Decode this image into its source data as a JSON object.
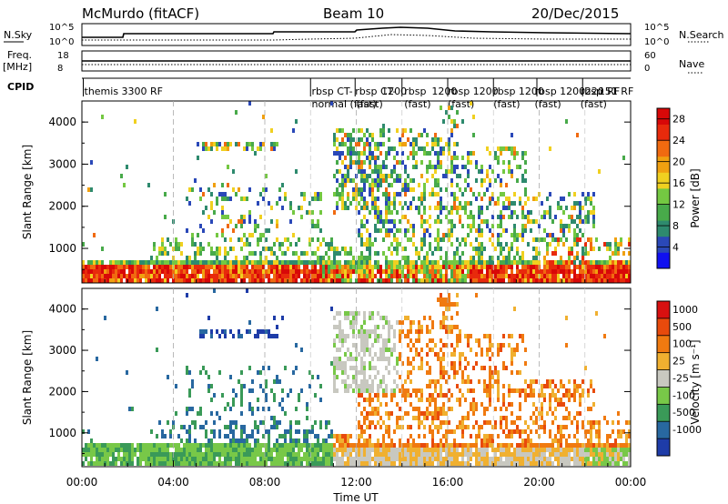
{
  "header": {
    "station": "McMurdo (fitACF)",
    "beam": "Beam 10",
    "date": "20/Dec/2015"
  },
  "top_panels": {
    "nsky_label": "N.Sky",
    "nsearch_label": "N.Search",
    "freq_label_1": "Freq.",
    "freq_label_2": "[MHz]",
    "nave_label": "Nave",
    "cpid_label": "CPID",
    "nsky_ticks": [
      "10^5",
      "10^0"
    ],
    "nsearch_ticks": [
      "10^5",
      "10^0"
    ],
    "freq_ticks": [
      "18",
      "8"
    ],
    "nave_ticks": [
      "60",
      "0"
    ]
  },
  "cpid_labels": [
    {
      "text": "themis 3300 RF",
      "time": 0.1
    },
    {
      "text": "rbsp CT-",
      "time": 10.05
    },
    {
      "text": "normal (fast)",
      "time": 10.05
    },
    {
      "text": "rbsp CT-",
      "time": 11.95
    },
    {
      "text": "(fast)",
      "time": 12.0
    },
    {
      "text": "1200",
      "time": 13.1
    },
    {
      "text": "rbsp",
      "time": 14.1
    },
    {
      "text": "(fast)",
      "time": 14.1
    },
    {
      "text": "1200",
      "time": 15.3
    },
    {
      "text": "rbsp",
      "time": 16.0
    },
    {
      "text": "(fast)",
      "time": 16.0
    },
    {
      "text": "1200",
      "time": 17.1
    },
    {
      "text": "rbsp",
      "time": 18.0
    },
    {
      "text": "(fast)",
      "time": 18.0
    },
    {
      "text": "1200",
      "time": 19.1
    },
    {
      "text": "rbsp",
      "time": 19.8
    },
    {
      "text": "(fast)",
      "time": 19.8
    },
    {
      "text": "1200",
      "time": 20.9
    },
    {
      "text": "rbsp",
      "time": 21.8
    },
    {
      "text": "(fast)",
      "time": 21.8
    },
    {
      "text": "220 RF",
      "time": 22.0
    },
    {
      "text": "151 RF",
      "time": 22.6
    }
  ],
  "chart_data": [
    {
      "type": "heatmap",
      "name": "power",
      "ylabel": "Slant Range [km]",
      "xlim_hours": [
        0,
        24
      ],
      "ylim": [
        180,
        4500
      ],
      "y_ticks": [
        1000,
        2000,
        3000,
        4000
      ],
      "colorbar": {
        "label": "Power [dB]",
        "ticks": [
          4,
          8,
          12,
          16,
          20,
          24,
          28
        ],
        "range": [
          0,
          30
        ],
        "colors": [
          "#1010f0",
          "#2a48b8",
          "#2e8a6e",
          "#48aa4a",
          "#74c842",
          "#f0d020",
          "#f0a010",
          "#f06a10",
          "#e82a0c",
          "#d80808"
        ]
      }
    },
    {
      "type": "heatmap",
      "name": "velocity",
      "ylabel": "Slant Range [km]",
      "xlabel": "Time UT",
      "x_ticks": [
        "00:00",
        "04:00",
        "08:00",
        "12:00",
        "16:00",
        "20:00",
        "00:00"
      ],
      "xlim_hours": [
        0,
        24
      ],
      "ylim": [
        180,
        4500
      ],
      "y_ticks": [
        1000,
        2000,
        3000,
        4000
      ],
      "colorbar": {
        "label": "Velocity [m s⁻¹]",
        "ticks": [
          "1000",
          "500",
          "100",
          "25",
          "-25",
          "-100",
          "-500",
          "-1000"
        ],
        "colors": [
          "#1e3ca8",
          "#2868a0",
          "#3a9a58",
          "#78c848",
          "#c8c8c0",
          "#f0b030",
          "#f07a10",
          "#e84a0c",
          "#d81010"
        ]
      }
    }
  ]
}
